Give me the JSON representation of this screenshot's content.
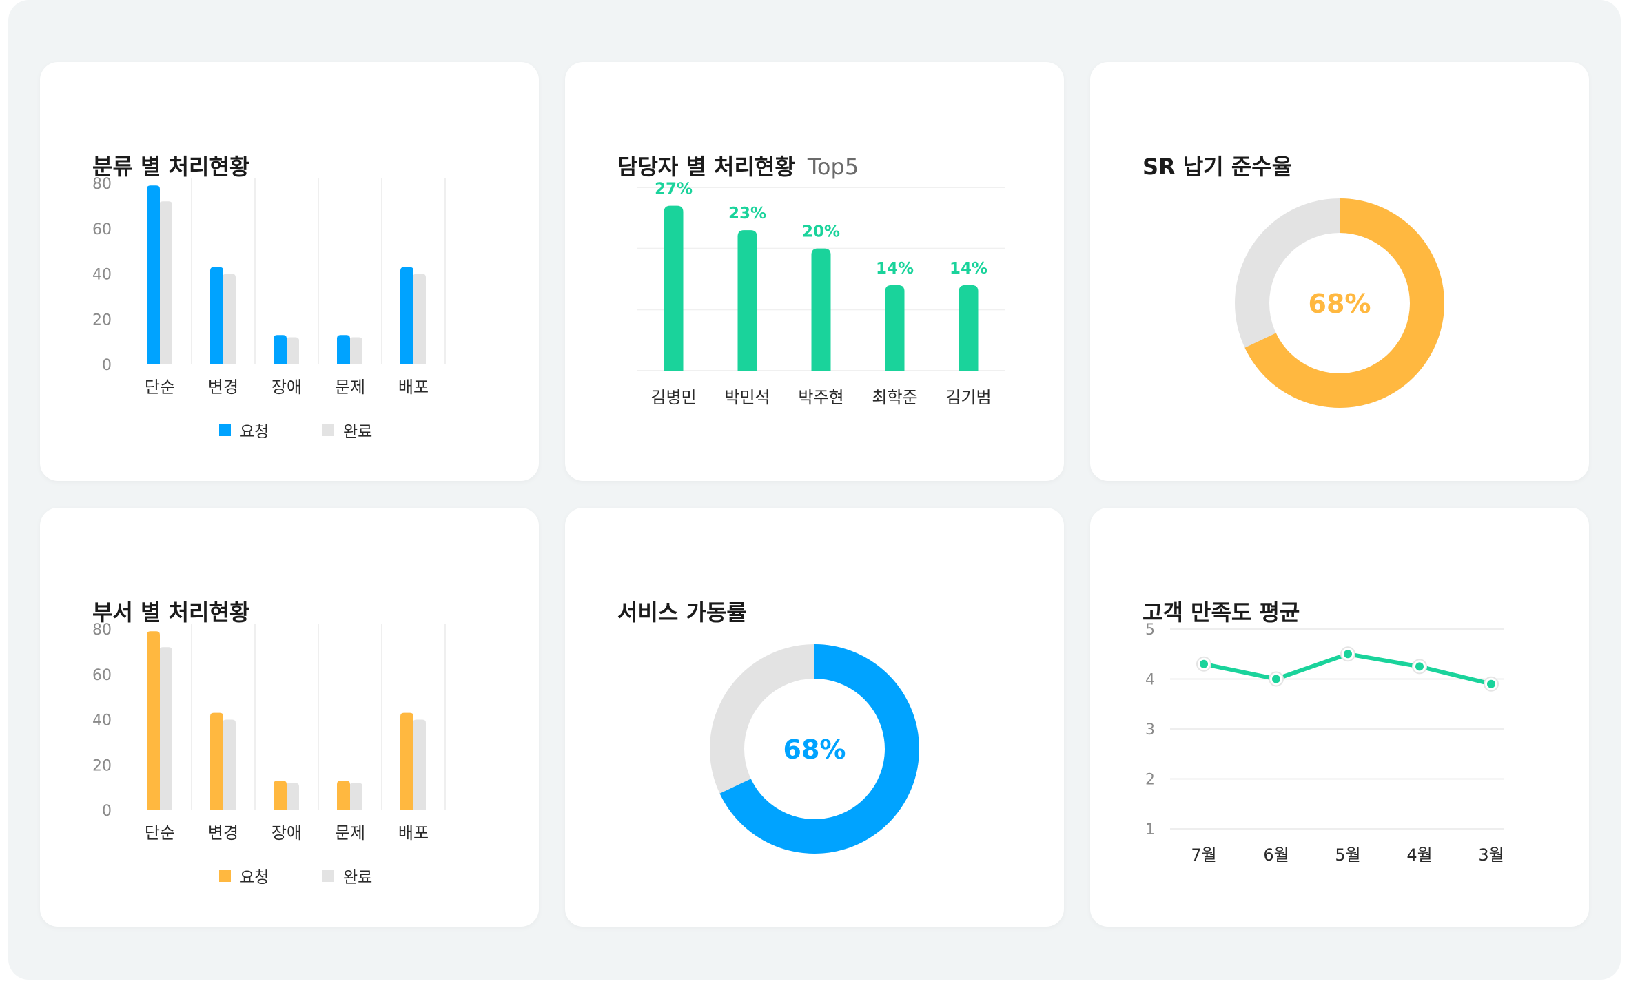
{
  "cards": {
    "category": {
      "title": "분류 별 처리현황"
    },
    "assignee": {
      "title": "담당자 별 처리현황",
      "subtitle": "Top5"
    },
    "sr": {
      "title": "SR 납기 준수율"
    },
    "dept": {
      "title": "부서 별 처리현황"
    },
    "uptime": {
      "title": "서비스 가동률"
    },
    "satisfaction": {
      "title": "고객 만족도 평균"
    }
  },
  "colors": {
    "blue": "#00a3ff",
    "orange": "#ffb840",
    "green": "#1ad39b",
    "gray": "#e3e3e3"
  },
  "chart_data": [
    {
      "type": "bar",
      "categories": [
        "단순",
        "변경",
        "장애",
        "문제",
        "배포"
      ],
      "series": [
        {
          "name": "요청",
          "values": [
            79,
            43,
            13,
            13,
            43
          ],
          "color": "#00a3ff"
        },
        {
          "name": "완료",
          "values": [
            72,
            40,
            12,
            12,
            40
          ],
          "color": "#e3e3e3"
        }
      ],
      "yticks": [
        0,
        20,
        40,
        60,
        80
      ],
      "ylim": [
        0,
        80
      ],
      "legend": "bottom-center"
    },
    {
      "type": "bar",
      "categories": [
        "김병민",
        "박민석",
        "박주현",
        "최학준",
        "김기범"
      ],
      "values": [
        27,
        23,
        20,
        14,
        14
      ],
      "data_labels": [
        "27%",
        "23%",
        "20%",
        "14%",
        "14%"
      ],
      "ylim": [
        0,
        30
      ],
      "grid": true
    },
    {
      "type": "pie",
      "donut": true,
      "value": 68,
      "center_label": "68%",
      "color": "#ffb840",
      "rest_color": "#e3e3e3"
    },
    {
      "type": "bar",
      "categories": [
        "단순",
        "변경",
        "장애",
        "문제",
        "배포"
      ],
      "series": [
        {
          "name": "요청",
          "values": [
            79,
            43,
            13,
            13,
            43
          ],
          "color": "#ffb840"
        },
        {
          "name": "완료",
          "values": [
            72,
            40,
            12,
            12,
            40
          ],
          "color": "#e3e3e3"
        }
      ],
      "yticks": [
        0,
        20,
        40,
        60,
        80
      ],
      "ylim": [
        0,
        80
      ],
      "legend": "bottom-center"
    },
    {
      "type": "pie",
      "donut": true,
      "value": 68,
      "center_label": "68%",
      "color": "#00a3ff",
      "rest_color": "#e3e3e3"
    },
    {
      "type": "line",
      "categories": [
        "7월",
        "6월",
        "5월",
        "4월",
        "3월"
      ],
      "values": [
        4.3,
        4.0,
        4.5,
        4.25,
        3.9
      ],
      "yticks": [
        1,
        2,
        3,
        4,
        5
      ],
      "ylim": [
        1,
        5
      ],
      "color": "#1ad39b",
      "grid": true
    }
  ]
}
